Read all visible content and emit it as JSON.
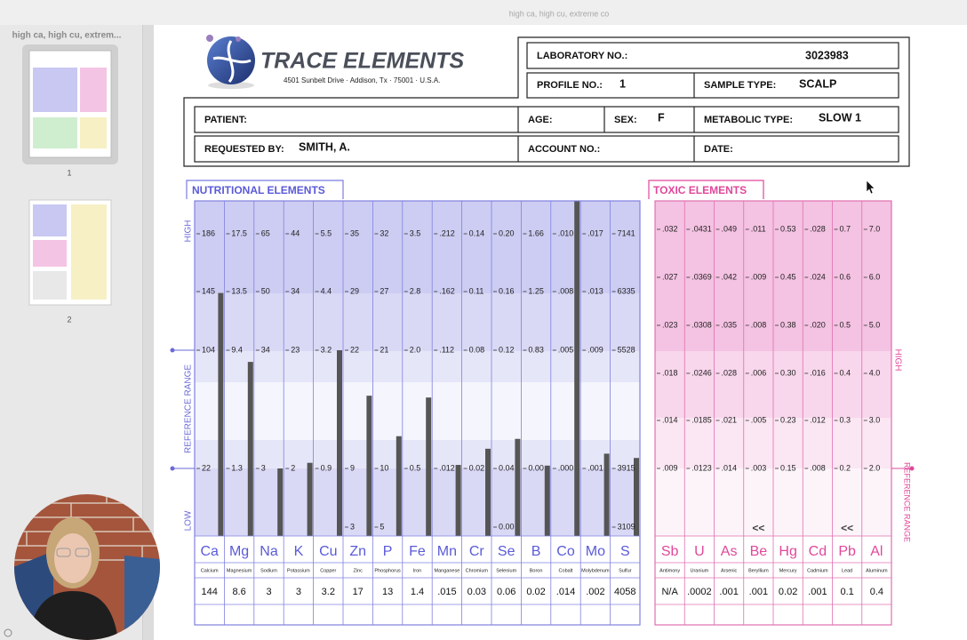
{
  "window": {
    "title": "high ca, high cu, extreme co"
  },
  "sidebar": {
    "title": "high ca, high cu, extrem...",
    "pages": [
      "1",
      "2"
    ]
  },
  "logo": {
    "name": "TRACE ELEMENTS",
    "address": "4501 Sunbelt Drive · Addison, Tx · 75001 · U.S.A."
  },
  "form": {
    "laboratory_no": {
      "label": "LABORATORY NO.:",
      "value": "3023983"
    },
    "profile_no": {
      "label": "PROFILE NO.:",
      "value": "1"
    },
    "sample_type": {
      "label": "SAMPLE TYPE:",
      "value": "SCALP"
    },
    "patient": {
      "label": "PATIENT:"
    },
    "age": {
      "label": "AGE:"
    },
    "sex": {
      "label": "SEX:",
      "value": "F"
    },
    "metabolic_type": {
      "label": "METABOLIC TYPE:",
      "value": "SLOW 1"
    },
    "requested_by": {
      "label": "REQUESTED BY:",
      "value": "SMITH, A."
    },
    "account_no": {
      "label": "ACCOUNT NO.:"
    },
    "date": {
      "label": "DATE:"
    }
  },
  "nutritional": {
    "title": "NUTRITIONAL ELEMENTS",
    "high": "HIGH",
    "reference_range": "REFERENCE RANGE",
    "low": "LOW",
    "elements": [
      {
        "symbol": "Ca",
        "name": "Calcium",
        "scale": [
          186,
          145,
          104,
          22
        ],
        "result": 144
      },
      {
        "symbol": "Mg",
        "name": "Magnesium",
        "scale": [
          17.5,
          13.5,
          9.4,
          1.3
        ],
        "result": 8.6
      },
      {
        "symbol": "Na",
        "name": "Sodium",
        "scale": [
          65,
          50,
          34,
          3
        ],
        "result": 3
      },
      {
        "symbol": "K",
        "name": "Potassium",
        "scale": [
          44,
          34,
          23,
          2
        ],
        "result": 3
      },
      {
        "symbol": "Cu",
        "name": "Copper",
        "scale": [
          5.5,
          4.4,
          3.2,
          0.9
        ],
        "result": 3.2
      },
      {
        "symbol": "Zn",
        "name": "Zinc",
        "scale": [
          35,
          29,
          22,
          9,
          3
        ],
        "result": 17
      },
      {
        "symbol": "P",
        "name": "Phosphorus",
        "scale": [
          32,
          27,
          21,
          10,
          5
        ],
        "result": 13
      },
      {
        "symbol": "Fe",
        "name": "Iron",
        "scale": [
          3.5,
          2.8,
          {
            "value": 2,
            "label": "2.0"
          },
          0.5
        ],
        "result": 1.4
      },
      {
        "symbol": "Mn",
        "name": "Manganese",
        "scale": [
          {
            "value": 0.212,
            "label": ".212"
          },
          {
            "value": 0.162,
            "label": ".162"
          },
          {
            "value": 0.112,
            "label": ".112"
          },
          {
            "value": 0.012,
            "label": ".012"
          }
        ],
        "result": {
          "value": 0.015,
          "label": ".015"
        }
      },
      {
        "symbol": "Cr",
        "name": "Chromium",
        "scale": [
          0.14,
          0.11,
          0.08,
          0.02
        ],
        "result": 0.03
      },
      {
        "symbol": "Se",
        "name": "Selenium",
        "scale": [
          {
            "value": 0.2,
            "label": "0.20"
          },
          0.16,
          0.12,
          0.04,
          {
            "value": 0,
            "label": "0.00"
          }
        ],
        "result": 0.06
      },
      {
        "symbol": "B",
        "name": "Boron",
        "scale": [
          1.66,
          1.25,
          0.83,
          {
            "value": 0,
            "label": "0.00"
          }
        ],
        "result": 0.02
      },
      {
        "symbol": "Co",
        "name": "Cobalt",
        "scale": [
          {
            "value": 0.01,
            "label": ".010"
          },
          {
            "value": 0.008,
            "label": ".008"
          },
          {
            "value": 0.005,
            "label": ".005"
          },
          {
            "value": 0,
            "label": ".000"
          }
        ],
        "result": {
          "value": 0.014,
          "label": ".014"
        }
      },
      {
        "symbol": "Mo",
        "name": "Molybdenum",
        "scale": [
          {
            "value": 0.017,
            "label": ".017"
          },
          {
            "value": 0.013,
            "label": ".013"
          },
          {
            "value": 0.009,
            "label": ".009"
          },
          {
            "value": 0.001,
            "label": ".001"
          }
        ],
        "result": {
          "value": 0.002,
          "label": ".002"
        }
      },
      {
        "symbol": "S",
        "name": "Sulfur",
        "scale": [
          7141,
          6335,
          5528,
          3915,
          3109
        ],
        "result": 4058
      }
    ]
  },
  "toxic": {
    "title": "TOXIC ELEMENTS",
    "high": "HIGH",
    "reference_range": "REFERENCE RANGE",
    "elements": [
      {
        "symbol": "Sb",
        "name": "Antimony",
        "scale": [
          {
            "value": 0.032,
            "label": ".032"
          },
          {
            "value": 0.027,
            "label": ".027"
          },
          {
            "value": 0.023,
            "label": ".023"
          },
          {
            "value": 0.018,
            "label": ".018"
          },
          {
            "value": 0.014,
            "label": ".014"
          },
          {
            "value": 0.009,
            "label": ".009"
          }
        ],
        "result": "N/A"
      },
      {
        "symbol": "U",
        "name": "Uranium",
        "scale": [
          {
            "value": 0.0431,
            "label": ".0431"
          },
          {
            "value": 0.0369,
            "label": ".0369"
          },
          {
            "value": 0.0308,
            "label": ".0308"
          },
          {
            "value": 0.0246,
            "label": ".0246"
          },
          {
            "value": 0.0185,
            "label": ".0185"
          },
          {
            "value": 0.0123,
            "label": ".0123"
          }
        ],
        "result": {
          "value": 0.0002,
          "label": ".0002"
        }
      },
      {
        "symbol": "As",
        "name": "Arsenic",
        "scale": [
          {
            "value": 0.049,
            "label": ".049"
          },
          {
            "value": 0.042,
            "label": ".042"
          },
          {
            "value": 0.035,
            "label": ".035"
          },
          {
            "value": 0.028,
            "label": ".028"
          },
          {
            "value": 0.021,
            "label": ".021"
          },
          {
            "value": 0.014,
            "label": ".014"
          }
        ],
        "result": {
          "value": 0.001,
          "label": ".001"
        }
      },
      {
        "symbol": "Be",
        "name": "Beryllium",
        "scale": [
          {
            "value": 0.011,
            "label": ".011"
          },
          {
            "value": 0.009,
            "label": ".009"
          },
          {
            "value": 0.008,
            "label": ".008"
          },
          {
            "value": 0.006,
            "label": ".006"
          },
          {
            "value": 0.005,
            "label": ".005"
          },
          {
            "value": 0.003,
            "label": ".003"
          }
        ],
        "result": {
          "value": 0.001,
          "label": ".001"
        },
        "flag": "<<"
      },
      {
        "symbol": "Hg",
        "name": "Mercury",
        "scale": [
          0.53,
          0.45,
          0.38,
          {
            "value": 0.3,
            "label": "0.30"
          },
          0.23,
          0.15
        ],
        "result": 0.02
      },
      {
        "symbol": "Cd",
        "name": "Cadmium",
        "scale": [
          {
            "value": 0.028,
            "label": ".028"
          },
          {
            "value": 0.024,
            "label": ".024"
          },
          {
            "value": 0.02,
            "label": ".020"
          },
          {
            "value": 0.016,
            "label": ".016"
          },
          {
            "value": 0.012,
            "label": ".012"
          },
          {
            "value": 0.008,
            "label": ".008"
          }
        ],
        "result": {
          "value": 0.001,
          "label": ".001"
        }
      },
      {
        "symbol": "Pb",
        "name": "Lead",
        "scale": [
          0.7,
          0.6,
          0.5,
          0.4,
          0.3,
          0.2
        ],
        "result": 0.1,
        "flag": "<<"
      },
      {
        "symbol": "Al",
        "name": "Aluminum",
        "scale": [
          {
            "value": 7,
            "label": "7.0"
          },
          {
            "value": 6,
            "label": "6.0"
          },
          {
            "value": 5,
            "label": "5.0"
          },
          {
            "value": 4,
            "label": "4.0"
          },
          {
            "value": 3,
            "label": "3.0"
          },
          {
            "value": 2,
            "label": "2.0"
          }
        ],
        "result": 0.4
      }
    ]
  }
}
